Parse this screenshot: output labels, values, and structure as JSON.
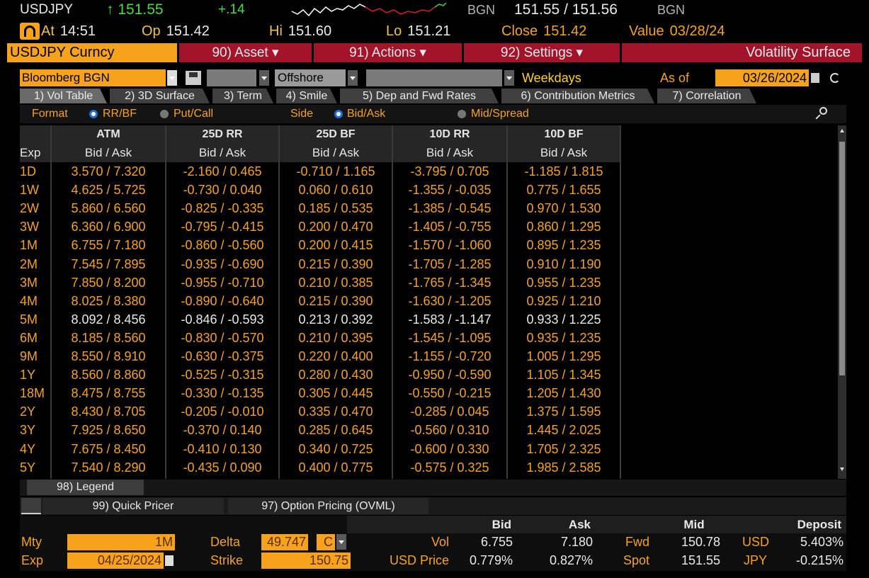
{
  "header": {
    "ticker": "USDJPY",
    "last": "↑ 151.55",
    "change": "+.14",
    "source": "BGN",
    "bid_ask": "151.55 / 151.56",
    "source2": "BGN",
    "stats": [
      {
        "label": "At",
        "value": "14:51"
      },
      {
        "label": "Op",
        "value": "151.42"
      },
      {
        "label": "Hi",
        "value": "151.60"
      },
      {
        "label": "Lo",
        "value": "151.21"
      },
      {
        "label": "Close",
        "value": "151.42"
      },
      {
        "label": "Value",
        "value": "03/28/24"
      }
    ]
  },
  "menu": {
    "security": "USDJPY Curncy",
    "items": [
      "90) Asset ▾",
      "91) Actions ▾",
      "92) Settings ▾"
    ],
    "page_title": "Volatility Surface"
  },
  "controls": {
    "source": "Bloomberg BGN",
    "location": "Offshore",
    "calendar": "Weekdays",
    "as_of_label": "As of",
    "as_of": "03/26/2024"
  },
  "tabs": [
    "1) Vol Table",
    "2) 3D Surface",
    "3) Term",
    "4) Smile",
    "5) Dep and Fwd Rates",
    "6) Contribution Metrics",
    "7) Correlation"
  ],
  "options": {
    "format_label": "Format",
    "format_options": [
      "RR/BF",
      "Put/Call"
    ],
    "side_label": "Side",
    "side_options": [
      "Bid/Ask",
      "Mid/Spread"
    ]
  },
  "table": {
    "columns": [
      "ATM",
      "25D RR",
      "25D BF",
      "10D RR",
      "10D BF"
    ],
    "expiry_header": "Exp",
    "subheader": "Bid / Ask",
    "rows": [
      {
        "exp": "1D",
        "cells": [
          "3.570 / 7.320",
          "-2.160 / 0.465",
          "-0.710 / 1.165",
          "-3.795 / 0.705",
          "-1.185 / 1.815"
        ]
      },
      {
        "exp": "1W",
        "cells": [
          "4.625 / 5.725",
          "-0.730 / 0.040",
          "0.060 / 0.610",
          "-1.355 / -0.035",
          "0.775 / 1.655"
        ]
      },
      {
        "exp": "2W",
        "cells": [
          "5.860 / 6.560",
          "-0.825 / -0.335",
          "0.185 / 0.535",
          "-1.385 / -0.545",
          "0.970 / 1.530"
        ]
      },
      {
        "exp": "3W",
        "cells": [
          "6.360 / 6.900",
          "-0.795 / -0.415",
          "0.200 / 0.470",
          "-1.405 / -0.755",
          "0.860 / 1.295"
        ]
      },
      {
        "exp": "1M",
        "cells": [
          "6.755 / 7.180",
          "-0.860 / -0.560",
          "0.200 / 0.415",
          "-1.570 / -1.060",
          "0.895 / 1.235"
        ]
      },
      {
        "exp": "2M",
        "cells": [
          "7.545 / 7.895",
          "-0.935 / -0.690",
          "0.215 / 0.390",
          "-1.705 / -1.285",
          "0.910 / 1.190"
        ]
      },
      {
        "exp": "3M",
        "cells": [
          "7.850 / 8.200",
          "-0.955 / -0.710",
          "0.210 / 0.385",
          "-1.765 / -1.345",
          "0.955 / 1.235"
        ]
      },
      {
        "exp": "4M",
        "cells": [
          "8.025 / 8.380",
          "-0.890 / -0.640",
          "0.215 / 0.390",
          "-1.630 / -1.205",
          "0.925 / 1.210"
        ]
      },
      {
        "exp": "5M",
        "cells": [
          "8.092 / 8.456",
          "-0.846 / -0.593",
          "0.213 / 0.392",
          "-1.583 / -1.147",
          "0.933 / 1.225"
        ]
      },
      {
        "exp": "6M",
        "cells": [
          "8.185 / 8.560",
          "-0.830 / -0.570",
          "0.210 / 0.395",
          "-1.545 / -1.095",
          "0.935 / 1.235"
        ]
      },
      {
        "exp": "9M",
        "cells": [
          "8.550 / 8.910",
          "-0.630 / -0.375",
          "0.220 / 0.400",
          "-1.155 / -0.720",
          "1.005 / 1.295"
        ]
      },
      {
        "exp": "1Y",
        "cells": [
          "8.560 / 8.860",
          "-0.525 / -0.315",
          "0.280 / 0.430",
          "-0.950 / -0.590",
          "1.105 / 1.345"
        ]
      },
      {
        "exp": "18M",
        "cells": [
          "8.475 / 8.755",
          "-0.330 / -0.135",
          "0.305 / 0.445",
          "-0.550 / -0.215",
          "1.205 / 1.430"
        ]
      },
      {
        "exp": "2Y",
        "cells": [
          "8.430 / 8.705",
          "-0.205 / -0.010",
          "0.335 / 0.470",
          "-0.285 / 0.045",
          "1.375 / 1.595"
        ]
      },
      {
        "exp": "3Y",
        "cells": [
          "7.925 / 8.650",
          "-0.370 / 0.140",
          "0.285 / 0.645",
          "-0.560 / 0.310",
          "1.445 / 2.025"
        ]
      },
      {
        "exp": "4Y",
        "cells": [
          "7.675 / 8.450",
          "-0.410 / 0.130",
          "0.340 / 0.725",
          "-0.600 / 0.330",
          "1.705 / 2.325"
        ]
      },
      {
        "exp": "5Y",
        "cells": [
          "7.540 / 8.290",
          "-0.435 / 0.090",
          "0.400 / 0.775",
          "-0.575 / 0.325",
          "1.985 / 2.585"
        ]
      }
    ]
  },
  "footer": {
    "legend": "98) Legend",
    "quick_pricer": "99) Quick Pricer",
    "option_pricing": "97) Option Pricing (OVML)"
  },
  "pricer": {
    "headers": [
      "Bid",
      "Ask",
      "Mid",
      "Deposit"
    ],
    "row1": {
      "label": "Mty",
      "maturity": "1M",
      "delta_label": "Delta",
      "delta": "49.747",
      "call_put": "C",
      "vol_label": "Vol",
      "bid": "6.755",
      "ask": "7.180",
      "fwd_label": "Fwd",
      "fwd": "150.78",
      "ccy": "USD",
      "deposit": "5.403%"
    },
    "row2": {
      "label": "Exp",
      "expiry": "04/25/2024",
      "strike_label": "Strike",
      "strike": "150.75",
      "price_label": "USD Price",
      "bid": "0.779%",
      "ask": "0.827%",
      "spot_label": "Spot",
      "spot": "151.55",
      "ccy": "JPY",
      "deposit": "-0.215%"
    }
  }
}
